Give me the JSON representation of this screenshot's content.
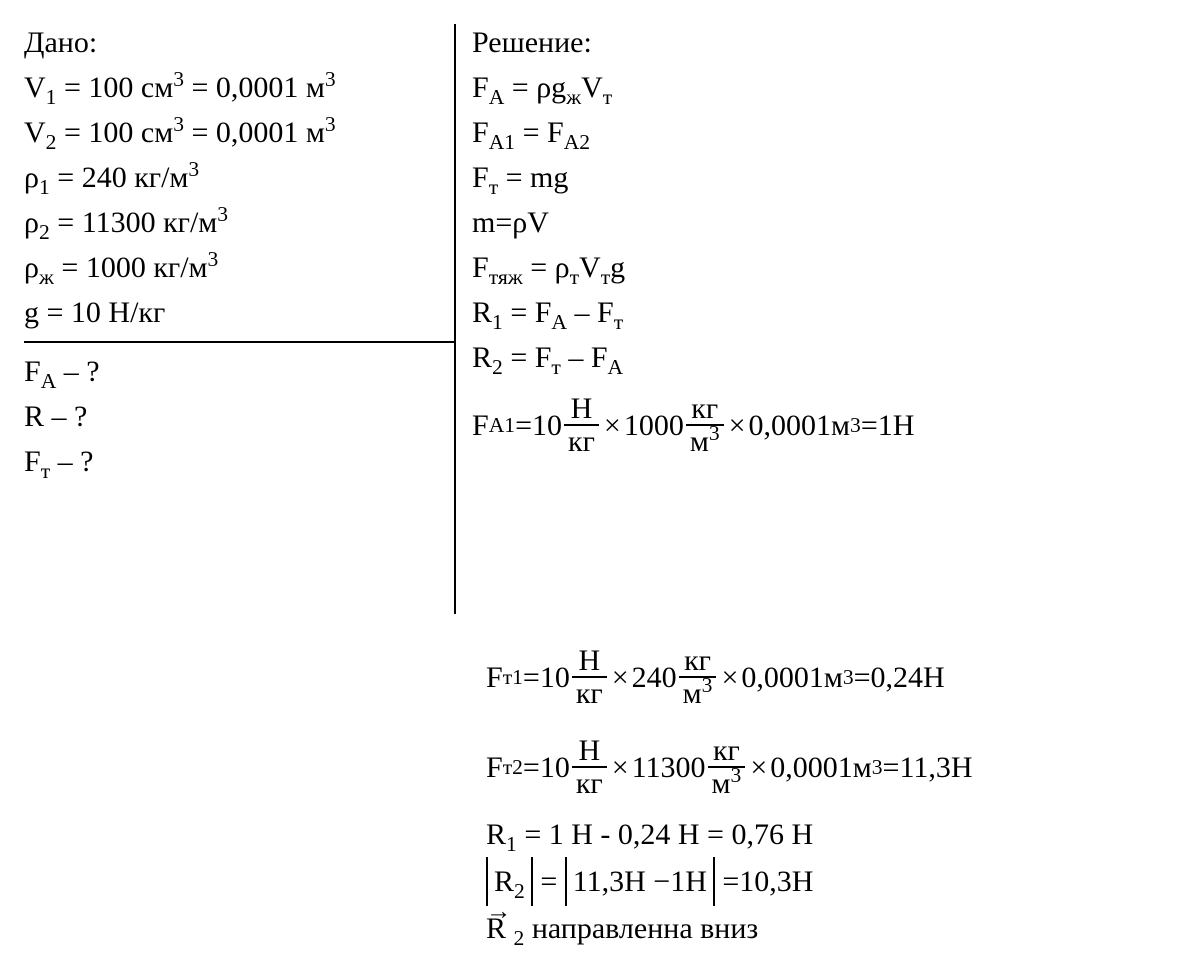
{
  "given": {
    "heading": "Дано:",
    "lines": {
      "v1": {
        "lhs": "V",
        "sub": "1",
        "rhs_a": " = 100 см",
        "sup_a": "3",
        "rhs_b": " = 0,0001 м",
        "sup_b": "3"
      },
      "v2": {
        "lhs": "V",
        "sub": "2",
        "rhs_a": " = 100 см",
        "sup_a": "3",
        "rhs_b": " = 0,0001 м",
        "sup_b": "3"
      },
      "rho1": {
        "lhs": "ρ",
        "sub": "1",
        "rhs": " = 240 кг/м",
        "sup": "3"
      },
      "rho2": {
        "lhs": "ρ",
        "sub": "2",
        "rhs": " = 11300 кг/м",
        "sup": "3"
      },
      "rhoZh": {
        "lhs": "ρ",
        "sub": "ж",
        "rhs": " = 1000 кг/м",
        "sup": "3"
      },
      "g": {
        "text": "g = 10 Н/кг"
      }
    },
    "find": {
      "fa": {
        "lhs": "F",
        "sub": "А",
        "rhs": " – ?"
      },
      "r": {
        "text": "R – ?"
      },
      "ft": {
        "lhs": "F",
        "sub": "т",
        "rhs": " – ?"
      }
    }
  },
  "solution": {
    "heading": "Решение:",
    "lines": {
      "fa_eq": {
        "pre": "F",
        "sub1": "А",
        "mid": " = ρg",
        "sub2": "ж",
        "mid2": "V",
        "sub3": "т"
      },
      "fa1_fa2": {
        "pre": "F",
        "sub1": "А1",
        "mid": " = F",
        "sub2": "А2"
      },
      "ft_mg": {
        "pre": "F",
        "sub1": "т",
        "mid": " = mg"
      },
      "m_rhoV": {
        "text": "m=ρV"
      },
      "ftyazh": {
        "pre": "F",
        "sub1": "тяж",
        "mid": " = ρ",
        "sub2": "т",
        "mid2": "V",
        "sub3": "т",
        "tail": "g"
      },
      "r1": {
        "pre": "R",
        "sub1": "1",
        "mid": " = F",
        "sub2": "А",
        "mid2": " – F",
        "sub3": "т"
      },
      "r2": {
        "pre": "R",
        "sub1": "2",
        "mid": " = F",
        "sub2": "т",
        "mid2": " – F",
        "sub3": "А"
      }
    },
    "calc": {
      "fa1": {
        "lhs_sym": "F",
        "lhs_sub": "А1",
        "eq": " =10 ",
        "frac1": {
          "num": "Н",
          "den": "кг"
        },
        "times1": "×",
        "val1": "1000 ",
        "frac2": {
          "num": "кг",
          "den_pre": "м",
          "den_sup": "3"
        },
        "times2": "×",
        "val2": "0,0001м",
        "val2_sup": "3",
        "eq2": " =1H"
      },
      "ft1": {
        "lhs_sym": "F",
        "lhs_sub": "т1",
        "eq": " =10 ",
        "frac1": {
          "num": "Н",
          "den": "кг"
        },
        "times1": "×",
        "val1": "240 ",
        "frac2": {
          "num": "кг",
          "den_pre": "м",
          "den_sup": "3"
        },
        "times2": "×",
        "val2": "0,0001м",
        "val2_sup": "3",
        "eq2": " =0,24H"
      },
      "ft2": {
        "lhs_sym": "F",
        "lhs_sub": "т2",
        "eq": " =10 ",
        "frac1": {
          "num": "Н",
          "den": "кг"
        },
        "times1": "×",
        "val1": "11300 ",
        "frac2": {
          "num": "кг",
          "den_pre": "м",
          "den_sup": "3"
        },
        "times2": "×",
        "val2": "0,0001м",
        "val2_sup": "3",
        "eq2": " =11,3H"
      },
      "r1_calc": {
        "pre": "R",
        "sub": "1",
        "rhs": " = 1 Н - 0,24 Н = 0,76 Н"
      },
      "r2_calc": {
        "abs1_pre": "R",
        "abs1_sub": "2",
        "mid": " = ",
        "abs2": "11,3H −1H",
        "rhs": " =10,3H"
      },
      "r2_dir": {
        "sym": "R",
        "sub": "2",
        "text": " направленна вниз"
      }
    }
  }
}
